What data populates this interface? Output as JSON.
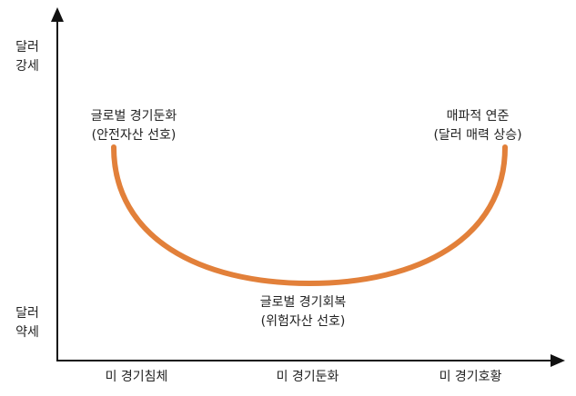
{
  "y_axis": {
    "top": [
      "달러",
      "강세"
    ],
    "bottom": [
      "달러",
      "약세"
    ]
  },
  "x_axis": {
    "labels": [
      "미 경기침체",
      "미 경기둔화",
      "미 경기호황"
    ]
  },
  "annotations": {
    "left": [
      "글로벌 경기둔화",
      "(안전자산 선호)"
    ],
    "right": [
      "매파적 연준",
      "(달러 매력 상승)"
    ],
    "bottom": [
      "글로벌 경기회복",
      "(위험자산 선호)"
    ]
  }
}
